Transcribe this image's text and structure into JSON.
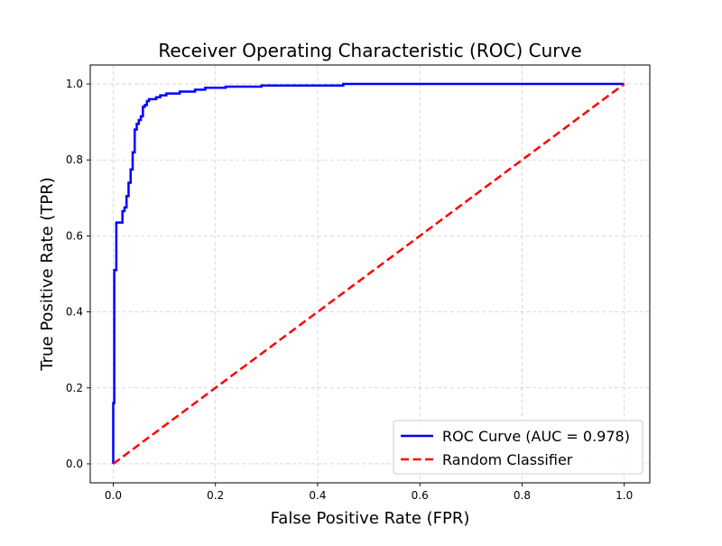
{
  "chart_data": {
    "type": "line",
    "title": "Receiver Operating Characteristic (ROC) Curve",
    "xlabel": "False Positive Rate (FPR)",
    "ylabel": "True Positive Rate (TPR)",
    "xlim": [
      -0.045,
      1.05
    ],
    "ylim": [
      -0.05,
      1.05
    ],
    "xticks": [
      0.0,
      0.2,
      0.4,
      0.6,
      0.8,
      1.0
    ],
    "yticks": [
      0.0,
      0.2,
      0.4,
      0.6,
      0.8,
      1.0
    ],
    "xtick_labels": [
      "0.0",
      "0.2",
      "0.4",
      "0.6",
      "0.8",
      "1.0"
    ],
    "ytick_labels": [
      "0.0",
      "0.2",
      "0.4",
      "0.6",
      "0.8",
      "1.0"
    ],
    "grid": true,
    "legend_position": "lower-right",
    "series": [
      {
        "name": "ROC Curve (AUC = 0.978)",
        "color": "#0000ff",
        "style": "solid",
        "x": [
          0.0,
          0.0,
          0.002,
          0.002,
          0.006,
          0.006,
          0.01,
          0.01,
          0.018,
          0.018,
          0.022,
          0.022,
          0.026,
          0.026,
          0.03,
          0.03,
          0.034,
          0.034,
          0.038,
          0.038,
          0.042,
          0.042,
          0.046,
          0.046,
          0.05,
          0.05,
          0.054,
          0.054,
          0.058,
          0.058,
          0.062,
          0.062,
          0.066,
          0.066,
          0.07,
          0.07,
          0.084,
          0.084,
          0.092,
          0.092,
          0.104,
          0.104,
          0.13,
          0.13,
          0.16,
          0.16,
          0.18,
          0.18,
          0.22,
          0.22,
          0.29,
          0.29,
          0.45,
          0.45,
          1.0
        ],
        "y": [
          0.0,
          0.16,
          0.16,
          0.51,
          0.51,
          0.635,
          0.635,
          0.635,
          0.635,
          0.665,
          0.665,
          0.675,
          0.675,
          0.705,
          0.705,
          0.74,
          0.74,
          0.775,
          0.775,
          0.82,
          0.82,
          0.88,
          0.88,
          0.895,
          0.895,
          0.905,
          0.905,
          0.915,
          0.915,
          0.94,
          0.94,
          0.945,
          0.945,
          0.955,
          0.955,
          0.96,
          0.96,
          0.965,
          0.965,
          0.97,
          0.97,
          0.975,
          0.975,
          0.98,
          0.98,
          0.985,
          0.985,
          0.99,
          0.99,
          0.993,
          0.993,
          0.996,
          0.996,
          1.0,
          1.0
        ]
      },
      {
        "name": "Random Classifier",
        "color": "#ff0000",
        "style": "dashed",
        "x": [
          0.0,
          1.0
        ],
        "y": [
          0.0,
          1.0
        ]
      }
    ]
  }
}
